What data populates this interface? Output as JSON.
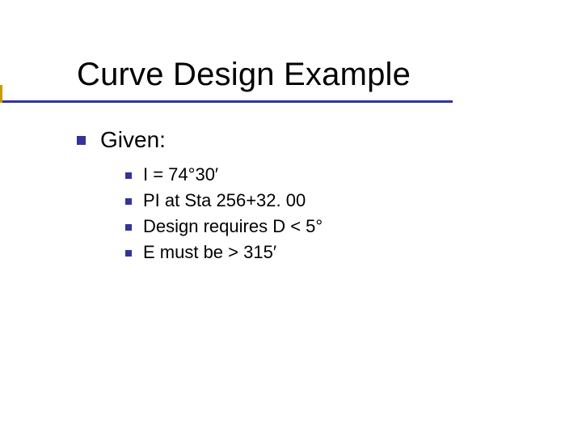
{
  "slide": {
    "title": "Curve Design Example",
    "title_fontsize": 40,
    "title_color": "#000000",
    "rule_color": "#333399",
    "tick_color": "#cc9900",
    "background_color": "#ffffff",
    "body": {
      "label": "Given:",
      "label_fontsize": 28,
      "bullet_color": "#333399",
      "items": [
        {
          "text": "I = 74°30′"
        },
        {
          "text": "PI at Sta 256+32. 00"
        },
        {
          "text": "Design requires D < 5°"
        },
        {
          "text": "E must be > 315′"
        }
      ],
      "item_fontsize": 22
    }
  }
}
